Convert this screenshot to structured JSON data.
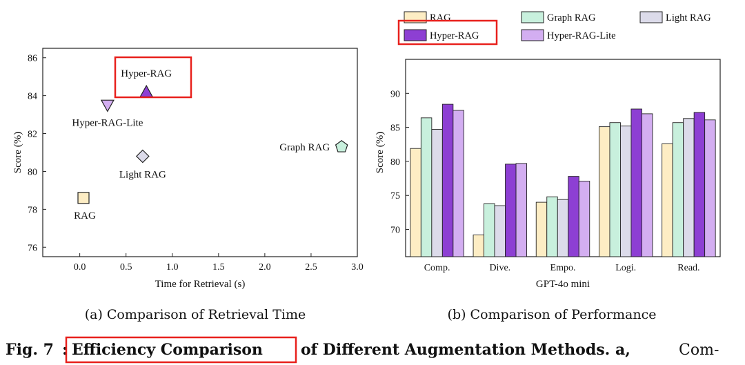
{
  "colors": {
    "RAG": "#fdedc4",
    "Graph RAG": "#c8f0dd",
    "Light RAG": "#dcdbea",
    "Hyper-RAG": "#8d3fd3",
    "Hyper-RAG-Lite": "#d3aef1",
    "highlight": "#e8201c"
  },
  "chart_data": [
    {
      "type": "scatter",
      "xlabel": "Time for Retrieval (s)",
      "ylabel": "Score (%)",
      "xlim": [
        -0.4,
        3.0
      ],
      "ylim": [
        75.5,
        86.5
      ],
      "xticks": [
        "0.0",
        "0.5",
        "1.0",
        "1.5",
        "2.0",
        "2.5",
        "3.0"
      ],
      "yticks": [
        "76",
        "78",
        "80",
        "82",
        "84",
        "86"
      ],
      "points": [
        {
          "label": "RAG",
          "x": 0.04,
          "y": 78.6,
          "marker": "square"
        },
        {
          "label": "Hyper-RAG-Lite",
          "x": 0.3,
          "y": 83.5,
          "marker": "triangle-down"
        },
        {
          "label": "Light RAG",
          "x": 0.68,
          "y": 80.8,
          "marker": "diamond"
        },
        {
          "label": "Hyper-RAG",
          "x": 0.72,
          "y": 84.2,
          "marker": "triangle-up"
        },
        {
          "label": "Graph RAG",
          "x": 2.83,
          "y": 81.3,
          "marker": "pentagon"
        }
      ],
      "subtitle": "(a) Comparison of Retrieval Time"
    },
    {
      "type": "bar",
      "xlabel": "GPT-4o mini",
      "ylabel": "Score (%)",
      "ylim": [
        66,
        95
      ],
      "yticks": [
        "70",
        "75",
        "80",
        "85",
        "90"
      ],
      "categories": [
        "Comp.",
        "Dive.",
        "Empo.",
        "Logi.",
        "Read."
      ],
      "series": [
        {
          "name": "RAG",
          "values": [
            81.9,
            69.2,
            74.0,
            85.1,
            82.6
          ]
        },
        {
          "name": "Graph RAG",
          "values": [
            86.4,
            73.8,
            74.8,
            85.7,
            85.7
          ]
        },
        {
          "name": "Light RAG",
          "values": [
            84.7,
            73.5,
            74.4,
            85.2,
            86.3
          ]
        },
        {
          "name": "Hyper-RAG",
          "values": [
            88.4,
            79.6,
            77.8,
            87.7,
            87.2
          ]
        },
        {
          "name": "Hyper-RAG-Lite",
          "values": [
            87.5,
            79.7,
            77.1,
            87.0,
            86.1
          ]
        }
      ],
      "legend": [
        "RAG",
        "Graph RAG",
        "Light RAG",
        "Hyper-RAG",
        "Hyper-RAG-Lite"
      ],
      "subtitle": "(b) Comparison of Performance"
    }
  ],
  "caption": {
    "prefix": "Fig. 7",
    "colon": ":",
    "highlighted": "Efficiency Comparison",
    "rest": "of Different Augmentation Methods. a,",
    "tail": "Com-"
  }
}
